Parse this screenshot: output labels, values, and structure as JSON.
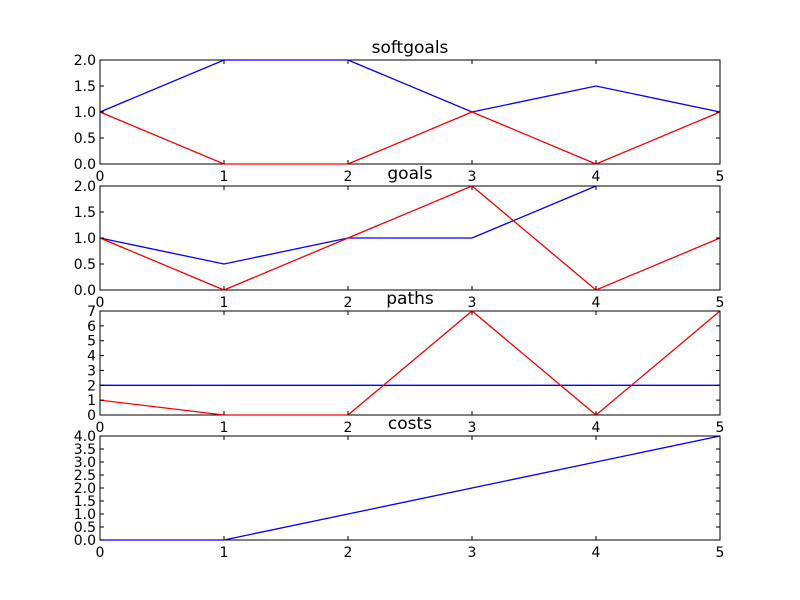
{
  "chart_data": [
    {
      "type": "line",
      "title": "softgoals",
      "x": [
        0,
        1,
        2,
        3,
        4,
        5
      ],
      "xlim": [
        0,
        5
      ],
      "ylim": [
        0,
        2
      ],
      "x_ticks": [
        "0",
        "1",
        "2",
        "3",
        "4",
        "5"
      ],
      "y_ticks": [
        "0.0",
        "0.5",
        "1.0",
        "1.5",
        "2.0"
      ],
      "grid": false,
      "series": [
        {
          "color": "#0000ff",
          "values": [
            1,
            2,
            2,
            1,
            1.5,
            1
          ]
        },
        {
          "color": "#ff0000",
          "values": [
            1,
            0,
            0,
            1,
            0,
            1
          ]
        }
      ]
    },
    {
      "type": "line",
      "title": "goals",
      "x": [
        0,
        1,
        2,
        3,
        4,
        5
      ],
      "xlim": [
        0,
        5
      ],
      "ylim": [
        0,
        2
      ],
      "x_ticks": [
        "0",
        "1",
        "2",
        "3",
        "4",
        "5"
      ],
      "y_ticks": [
        "0.0",
        "0.5",
        "1.0",
        "1.5",
        "2.0"
      ],
      "grid": false,
      "series": [
        {
          "color": "#0000ff",
          "values": [
            1,
            0.5,
            1,
            1,
            2,
            null
          ]
        },
        {
          "color": "#ff0000",
          "values": [
            1,
            0,
            1,
            2,
            0,
            1
          ]
        }
      ]
    },
    {
      "type": "line",
      "title": "paths",
      "x": [
        0,
        1,
        2,
        3,
        4,
        5
      ],
      "xlim": [
        0,
        5
      ],
      "ylim": [
        0,
        7
      ],
      "x_ticks": [
        "0",
        "1",
        "2",
        "3",
        "4",
        "5"
      ],
      "y_ticks": [
        "0",
        "1",
        "2",
        "3",
        "4",
        "5",
        "6",
        "7"
      ],
      "grid": false,
      "series": [
        {
          "color": "#0000ff",
          "values": [
            2,
            2,
            2,
            2,
            2,
            2
          ]
        },
        {
          "color": "#ff0000",
          "values": [
            1,
            0,
            0,
            7,
            0,
            7
          ]
        }
      ]
    },
    {
      "type": "line",
      "title": "costs",
      "x": [
        0,
        1,
        2,
        3,
        4,
        5
      ],
      "xlim": [
        0,
        5
      ],
      "ylim": [
        0,
        4
      ],
      "x_ticks": [
        "0",
        "1",
        "2",
        "3",
        "4",
        "5"
      ],
      "y_ticks": [
        "0.0",
        "0.5",
        "1.0",
        "1.5",
        "2.0",
        "2.5",
        "3.0",
        "3.5",
        "4.0"
      ],
      "grid": false,
      "series": [
        {
          "color": "#0000ff",
          "values": [
            0,
            0,
            1,
            2,
            3,
            4
          ]
        }
      ]
    }
  ]
}
